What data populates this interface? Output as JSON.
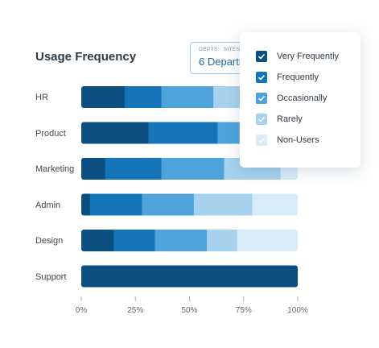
{
  "header": {
    "title": "Usage Frequency",
    "filter_label": "DEPTS · SITES",
    "filter_value": "6 Departments"
  },
  "legend": {
    "items": [
      {
        "label": "Very Frequently",
        "color": "#0b4f80"
      },
      {
        "label": "Frequently",
        "color": "#1474b8"
      },
      {
        "label": "Occasionally",
        "color": "#4fa3db"
      },
      {
        "label": "Rarely",
        "color": "#a6d2ef"
      },
      {
        "label": "Non-Users",
        "color": "#d7ebf8"
      }
    ]
  },
  "chart_data": {
    "type": "bar",
    "orientation": "horizontal",
    "stacked": true,
    "categories": [
      "HR",
      "Product",
      "Marketing",
      "Admin",
      "Design",
      "Support"
    ],
    "series": [
      {
        "name": "Very Frequently",
        "values": [
          20,
          31,
          11,
          4,
          15,
          100
        ]
      },
      {
        "name": "Frequently",
        "values": [
          17,
          32,
          26,
          24,
          19,
          0
        ]
      },
      {
        "name": "Occasionally",
        "values": [
          24,
          10,
          29,
          24,
          24,
          0
        ]
      },
      {
        "name": "Rarely",
        "values": [
          14,
          10,
          26,
          27,
          14,
          0
        ]
      },
      {
        "name": "Non-Users",
        "values": [
          25,
          17,
          8,
          21,
          28,
          0
        ]
      }
    ],
    "x_ticks": [
      "0%",
      "25%",
      "50%",
      "75%",
      "100%"
    ],
    "xlim": [
      0,
      100
    ],
    "legend_position": "top-right"
  }
}
